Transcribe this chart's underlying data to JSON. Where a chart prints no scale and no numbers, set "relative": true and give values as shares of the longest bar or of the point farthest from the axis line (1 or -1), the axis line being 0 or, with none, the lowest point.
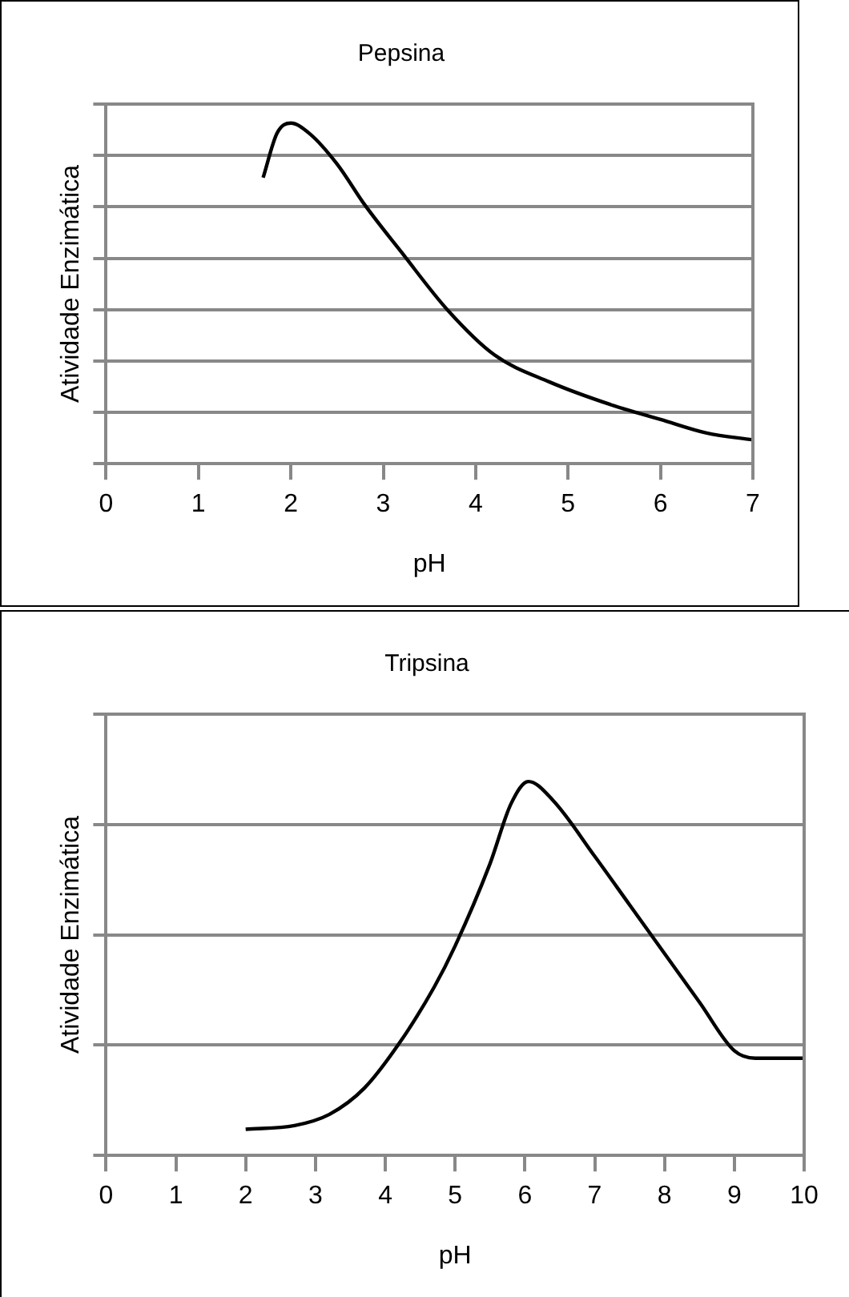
{
  "chart_data": [
    {
      "type": "line",
      "title": "Pepsina",
      "xlabel": "pH",
      "ylabel": "Atividade Enzimática",
      "relative": true,
      "grid": "y",
      "marker": "none",
      "legend": false,
      "xlim": [
        0,
        7
      ],
      "xticks": [
        0,
        1,
        2,
        3,
        4,
        5,
        6,
        7
      ],
      "series": [
        {
          "color": "#000000",
          "x": [
            1.7,
            1.85,
            2.0,
            2.2,
            2.5,
            2.8,
            3.2,
            3.7,
            4.2,
            4.8,
            5.5,
            6.0,
            6.5,
            7.0
          ],
          "values": [
            0.84,
            0.97,
            1,
            0.97,
            0.88,
            0.76,
            0.62,
            0.45,
            0.32,
            0.24,
            0.17,
            0.13,
            0.09,
            0.07
          ]
        }
      ]
    },
    {
      "type": "line",
      "title": "Tripsina",
      "xlabel": "pH",
      "ylabel": "Atividade Enzimática",
      "relative": true,
      "grid": "y",
      "marker": "none",
      "legend": false,
      "xlim": [
        0,
        10
      ],
      "xticks": [
        0,
        1,
        2,
        3,
        4,
        5,
        6,
        7,
        8,
        9,
        10
      ],
      "series": [
        {
          "color": "#000000",
          "x": [
            2,
            2.7,
            3.2,
            3.7,
            4.2,
            4.7,
            5.0,
            5.5,
            5.8,
            6.05,
            6.4,
            7,
            7.5,
            8,
            8.5,
            9.0,
            9.3,
            10
          ],
          "values": [
            0.07,
            0.08,
            0.11,
            0.18,
            0.3,
            0.45,
            0.56,
            0.78,
            0.94,
            1,
            0.95,
            0.8,
            0.67,
            0.54,
            0.41,
            0.28,
            0.26,
            0.26
          ]
        }
      ]
    }
  ]
}
